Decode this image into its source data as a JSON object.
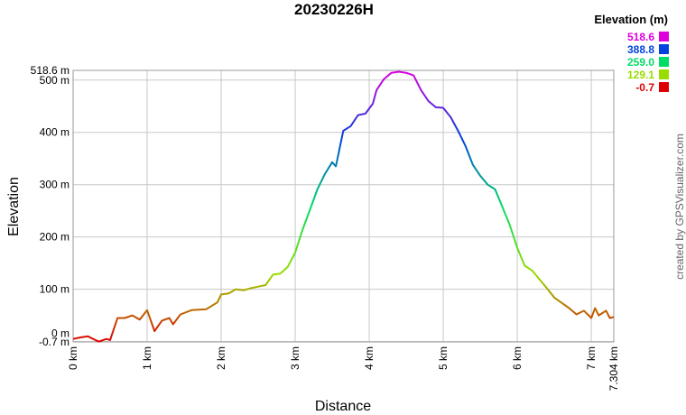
{
  "chart_data": {
    "type": "line",
    "title": "20230226H",
    "x_label": "Distance",
    "y_label": "Elevation",
    "credit": "created by GPSVisualizer.com",
    "x": [
      0,
      0.1,
      0.2,
      0.3,
      0.35,
      0.45,
      0.5,
      0.6,
      0.7,
      0.8,
      0.9,
      1.0,
      1.05,
      1.1,
      1.2,
      1.3,
      1.35,
      1.45,
      1.6,
      1.8,
      1.95,
      2.0,
      2.1,
      2.2,
      2.3,
      2.4,
      2.5,
      2.6,
      2.7,
      2.8,
      2.9,
      3.0,
      3.1,
      3.2,
      3.3,
      3.4,
      3.5,
      3.55,
      3.65,
      3.75,
      3.85,
      3.95,
      4.05,
      4.1,
      4.2,
      4.3,
      4.4,
      4.5,
      4.6,
      4.7,
      4.8,
      4.9,
      5.0,
      5.1,
      5.2,
      5.3,
      5.4,
      5.5,
      5.6,
      5.7,
      5.8,
      5.9,
      6.0,
      6.1,
      6.2,
      6.3,
      6.4,
      6.5,
      6.6,
      6.7,
      6.8,
      6.9,
      7.0,
      7.05,
      7.1,
      7.2,
      7.25,
      7.304
    ],
    "values": [
      5,
      8,
      10,
      3,
      0,
      5,
      3,
      45,
      45,
      50,
      42,
      60,
      40,
      20,
      40,
      45,
      33,
      52,
      60,
      62,
      75,
      90,
      92,
      100,
      98,
      102,
      105,
      108,
      128,
      130,
      143,
      170,
      214,
      252,
      291,
      320,
      343,
      335,
      403,
      412,
      433,
      436,
      455,
      481,
      502,
      514,
      516,
      514,
      509,
      481,
      460,
      448,
      447,
      429,
      403,
      374,
      338,
      317,
      300,
      291,
      257,
      222,
      179,
      145,
      136,
      119,
      102,
      84,
      74,
      64,
      52,
      59,
      45,
      64,
      50,
      59,
      45,
      47
    ],
    "xlim": [
      0,
      7.304
    ],
    "ylim": [
      -0.7,
      518.6
    ],
    "xticks": [
      {
        "value": 0,
        "label": "0 km"
      },
      {
        "value": 1,
        "label": "1 km"
      },
      {
        "value": 2,
        "label": "2 km"
      },
      {
        "value": 3,
        "label": "3 km"
      },
      {
        "value": 4,
        "label": "4 km"
      },
      {
        "value": 5,
        "label": "5 km"
      },
      {
        "value": 6,
        "label": "6 km"
      },
      {
        "value": 7,
        "label": "7 km"
      },
      {
        "value": 7.304,
        "label": "7.304 km"
      }
    ],
    "yticks": [
      {
        "value": -0.7,
        "label": "-0.7 m"
      },
      {
        "value": 0,
        "label": "0 m"
      },
      {
        "value": 100,
        "label": "100 m"
      },
      {
        "value": 200,
        "label": "200 m"
      },
      {
        "value": 300,
        "label": "300 m"
      },
      {
        "value": 400,
        "label": "400 m"
      },
      {
        "value": 500,
        "label": "500 m"
      },
      {
        "value": 518.6,
        "label": "518.6 m"
      }
    ],
    "grid": true,
    "legend": {
      "title": "Elevation (m)",
      "entries": [
        {
          "value": 518.6,
          "label": "518.6",
          "color": "#dd00dd"
        },
        {
          "value": 388.8,
          "label": "388.8",
          "color": "#0044dd"
        },
        {
          "value": 259.0,
          "label": "259.0",
          "color": "#00dd66"
        },
        {
          "value": 129.1,
          "label": "129.1",
          "color": "#99dd00"
        },
        {
          "value": -0.7,
          "label": "-0.7",
          "color": "#dd0000"
        }
      ]
    }
  }
}
